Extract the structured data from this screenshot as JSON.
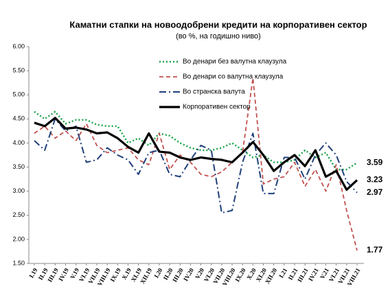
{
  "chart_data": {
    "type": "line",
    "title": "Каматни стапки на новоодобрени кредити на корпоративен сектор",
    "subtitle": "(во %, на годишно ниво)",
    "categories": [
      "I.19",
      "II.19",
      "III.19",
      "IV.19",
      "V.19",
      "VI.19",
      "VII.19",
      "VIII.19",
      "IX.19",
      "X.19",
      "XI.19",
      "XII.19",
      "I.20",
      "II.20",
      "III.20",
      "IV.20",
      "V.20",
      "VI.20",
      "VII.20",
      "VIII.20",
      "IX.20",
      "X.20",
      "XI.20",
      "XII.20",
      "I.21",
      "II.21",
      "III.21",
      "IV.21",
      "V.21",
      "VI.21",
      "VII.21",
      "VIII.21"
    ],
    "series": [
      {
        "name": "Во денари без валутна клаузула",
        "color": "#1aa34a",
        "dash": "2,3",
        "width": 2.5,
        "values": [
          4.65,
          4.5,
          4.65,
          4.4,
          4.48,
          4.48,
          4.38,
          4.35,
          4.35,
          4.0,
          4.1,
          3.95,
          4.2,
          4.15,
          4.0,
          3.9,
          3.85,
          3.85,
          3.9,
          4.0,
          3.85,
          3.7,
          3.75,
          3.6,
          3.6,
          3.65,
          3.85,
          3.7,
          3.8,
          3.45,
          3.45,
          3.59
        ]
      },
      {
        "name": "Во денари со валутна клаузула",
        "color": "#c0504d",
        "dash": "6,4",
        "width": 1.8,
        "values": [
          4.2,
          4.35,
          4.1,
          4.25,
          4.05,
          4.4,
          3.95,
          3.8,
          3.85,
          3.9,
          3.65,
          3.55,
          4.2,
          3.45,
          3.75,
          3.6,
          3.35,
          3.3,
          3.4,
          3.6,
          3.8,
          5.35,
          3.15,
          3.25,
          3.3,
          3.6,
          3.1,
          3.45,
          3.0,
          3.55,
          2.6,
          1.77
        ]
      },
      {
        "name": "Во странска валута",
        "color": "#1f3f7a",
        "dash": "10,4,2,4",
        "width": 2,
        "values": [
          4.05,
          3.85,
          4.5,
          4.25,
          4.35,
          3.6,
          3.65,
          3.9,
          3.75,
          3.65,
          3.35,
          3.8,
          3.85,
          3.35,
          3.3,
          3.65,
          3.95,
          3.85,
          2.55,
          2.6,
          3.6,
          4.2,
          2.95,
          2.95,
          3.7,
          3.7,
          3.25,
          3.75,
          4.0,
          3.75,
          3.2,
          2.97
        ]
      },
      {
        "name": "Корпоративен сектор",
        "color": "#000000",
        "dash": "none",
        "width": 3.2,
        "values": [
          4.42,
          4.35,
          4.52,
          4.3,
          4.32,
          4.28,
          4.2,
          4.22,
          4.1,
          3.92,
          3.8,
          4.2,
          3.82,
          3.8,
          3.7,
          3.65,
          3.7,
          3.67,
          3.65,
          3.6,
          3.8,
          4.02,
          3.75,
          3.42,
          3.6,
          3.75,
          3.52,
          3.85,
          3.3,
          3.42,
          3.03,
          3.23
        ]
      }
    ],
    "ylim": [
      1.5,
      6.0
    ],
    "yticks": [
      {
        "value": 1.5,
        "label": "1.50"
      },
      {
        "value": 2.0,
        "label": "2.00"
      },
      {
        "value": 2.5,
        "label": "2.50"
      },
      {
        "value": 3.0,
        "label": "3.00"
      },
      {
        "value": 3.5,
        "label": "3.50"
      },
      {
        "value": 4.0,
        "label": "4.00"
      },
      {
        "value": 4.5,
        "label": "4.50"
      },
      {
        "value": 5.0,
        "label": "5.00"
      },
      {
        "value": 5.5,
        "label": "5.50"
      },
      {
        "value": 6.0,
        "label": "6.00"
      }
    ],
    "grid": false
  }
}
